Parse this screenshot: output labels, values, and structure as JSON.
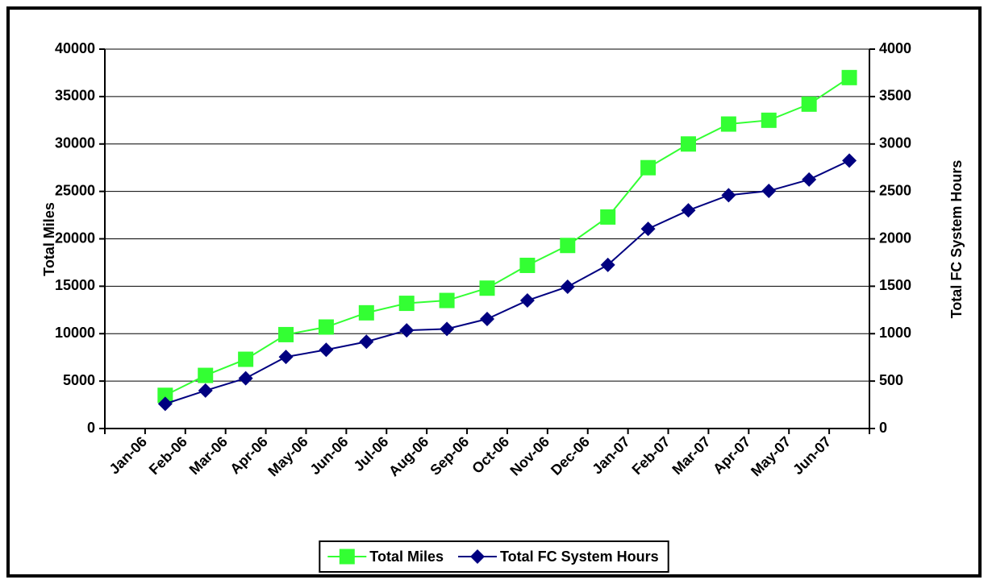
{
  "chart_data": {
    "type": "line",
    "categories": [
      "Jan-06",
      "Feb-06",
      "Mar-06",
      "Apr-06",
      "May-06",
      "Jun-06",
      "Jul-06",
      "Aug-06",
      "Sep-06",
      "Oct-06",
      "Nov-06",
      "Dec-06",
      "Jan-07",
      "Feb-07",
      "Mar-07",
      "Apr-07",
      "May-07",
      "Jun-07"
    ],
    "series": [
      {
        "name": "Total Miles",
        "color": "#33ff33",
        "marker": "square",
        "values": [
          3500,
          5600,
          7300,
          9900,
          10700,
          12200,
          13200,
          13500,
          14800,
          17200,
          19300,
          22300,
          27500,
          30000,
          32100,
          32500,
          34200,
          37000
        ]
      },
      {
        "name": "Total FC System Hours",
        "color": "#000080",
        "marker": "diamond",
        "axis": "y2",
        "values": [
          260,
          400,
          530,
          755,
          830,
          915,
          1035,
          1050,
          1155,
          1350,
          1495,
          1725,
          2105,
          2300,
          2460,
          2505,
          2625,
          2825
        ]
      }
    ],
    "ylabel": "Total Miles",
    "y2label": "Total FC System Hours",
    "ylim": [
      0,
      40000
    ],
    "yticks": [
      0,
      5000,
      10000,
      15000,
      20000,
      25000,
      30000,
      35000,
      40000
    ],
    "y2lim": [
      0,
      4000
    ],
    "y2ticks": [
      0,
      500,
      1000,
      1500,
      2000,
      2500,
      3000,
      3500,
      4000
    ],
    "grid": true,
    "legend": "bottom"
  }
}
